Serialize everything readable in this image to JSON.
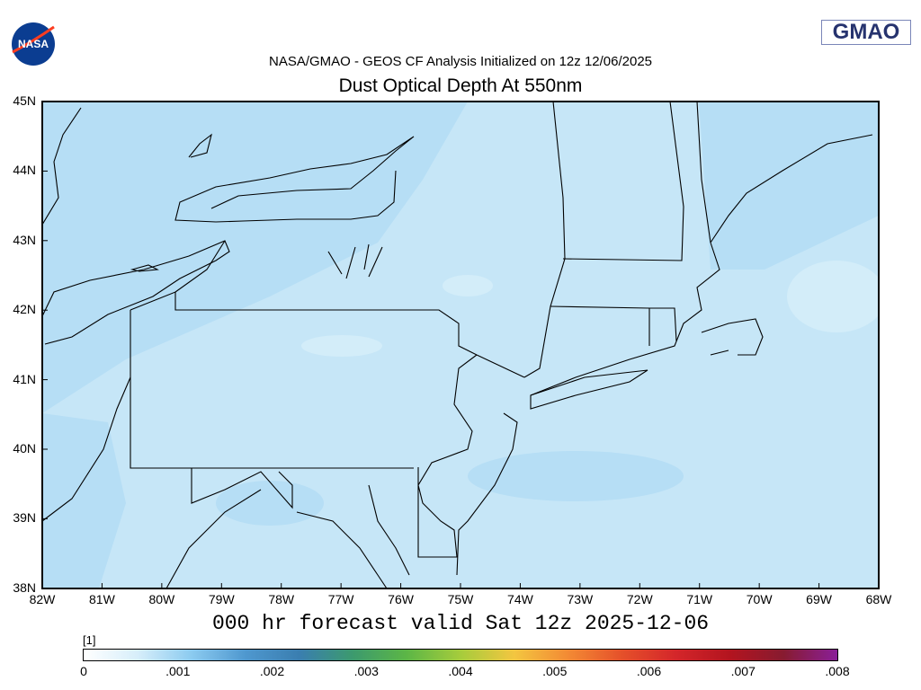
{
  "header": {
    "subtitle": "NASA/GMAO - GEOS CF Analysis Initialized on 12z 12/06/2025",
    "title": "Dust Optical Depth At 550nm",
    "logo_left": "NASA",
    "logo_right": "GMAO"
  },
  "map": {
    "lat_labels": [
      "45N",
      "44N",
      "43N",
      "42N",
      "41N",
      "40N",
      "39N",
      "38N"
    ],
    "lon_labels": [
      "82W",
      "81W",
      "80W",
      "79W",
      "78W",
      "77W",
      "76W",
      "75W",
      "74W",
      "73W",
      "72W",
      "71W",
      "70W",
      "69W",
      "68W"
    ],
    "extent": {
      "lon": [
        -82,
        -68
      ],
      "lat": [
        38,
        45
      ]
    },
    "field_color": "#c6e6f7",
    "field_color_dark": "#b6def5",
    "field_range": "about 0.0005 to 0.001"
  },
  "footer": {
    "forecast": "000 hr forecast valid Sat 12z 2025-12-06"
  },
  "colorbar": {
    "unit": "[1]",
    "ticks": [
      "0",
      ".001",
      ".002",
      ".003",
      ".004",
      ".005",
      ".006",
      ".007",
      ".008"
    ],
    "colors": [
      "#ffffff",
      "#d7eefa",
      "#8ccbf0",
      "#4f98cf",
      "#3a7eb0",
      "#3c9a6e",
      "#5cb646",
      "#a6cc3c",
      "#f3c640",
      "#f38a34",
      "#e5502a",
      "#d4262a",
      "#b3141f",
      "#871b30",
      "#8a1f98"
    ]
  }
}
